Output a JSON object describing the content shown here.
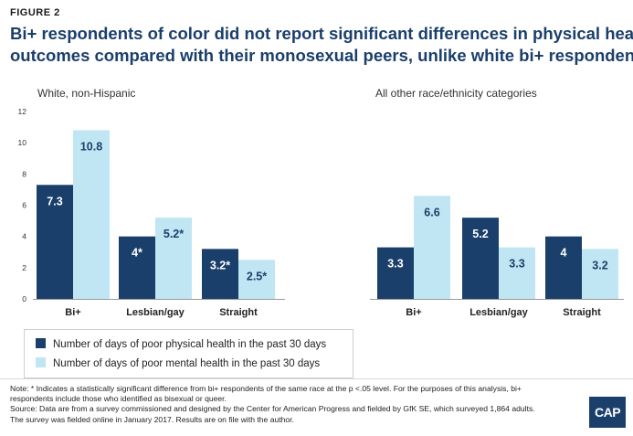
{
  "figure_label": "FIGURE 2",
  "title_lines": [
    "Bi+ respondents of color did not report significant differences in physical health",
    "outcomes compared with their monosexual peers, unlike white bi+ respondents"
  ],
  "colors": {
    "physical": "#1b3f6b",
    "mental": "#bfe6f2",
    "title": "#1b3f6b"
  },
  "legend": [
    {
      "label": "Number of days of poor physical health in the past 30 days"
    },
    {
      "label": "Number of days of poor mental health in the past 30 days"
    }
  ],
  "chart_data": [
    {
      "type": "bar",
      "title": "White, non-Hispanic",
      "categories": [
        "Bi+",
        "Lesbian/gay",
        "Straight"
      ],
      "series": [
        {
          "name": "Number of days of poor physical health in the past 30 days",
          "values": [
            7.3,
            4,
            3.2
          ],
          "labels": [
            "7.3",
            "4*",
            "3.2*"
          ]
        },
        {
          "name": "Number of days of poor mental health in the past 30 days",
          "values": [
            10.8,
            5.2,
            2.5
          ],
          "labels": [
            "10.8",
            "5.2*",
            "2.5*"
          ]
        }
      ],
      "ylim": [
        0,
        12
      ],
      "yticks": [
        "0",
        "2",
        "4",
        "6",
        "8",
        "10",
        "12"
      ],
      "grid": false
    },
    {
      "type": "bar",
      "title": "All other race/ethnicity categories",
      "categories": [
        "Bi+",
        "Lesbian/gay",
        "Straight"
      ],
      "series": [
        {
          "name": "Number of days of poor physical health in the past 30 days",
          "values": [
            3.3,
            5.2,
            4
          ],
          "labels": [
            "3.3",
            "5.2",
            "4"
          ]
        },
        {
          "name": "Number of days of poor mental health in the past 30 days",
          "values": [
            6.6,
            3.3,
            3.2
          ],
          "labels": [
            "6.6",
            "3.3",
            "3.2"
          ]
        }
      ],
      "ylim": [
        0,
        12
      ],
      "grid": false
    }
  ],
  "notes": [
    "Note: * Indicates a statistically significant difference from bi+ respondents of the same race at the p <.05 level. For the purposes of this analysis, bi+",
    "respondents include those who identified as bisexual or queer.",
    "Source: Data are from a survey commissioned and designed by the Center for American Progress and fielded by GfK SE, which surveyed 1,864 adults.",
    "The survey was fielded online in January 2017. Results are on file with the author."
  ],
  "logo_text": "CAP"
}
